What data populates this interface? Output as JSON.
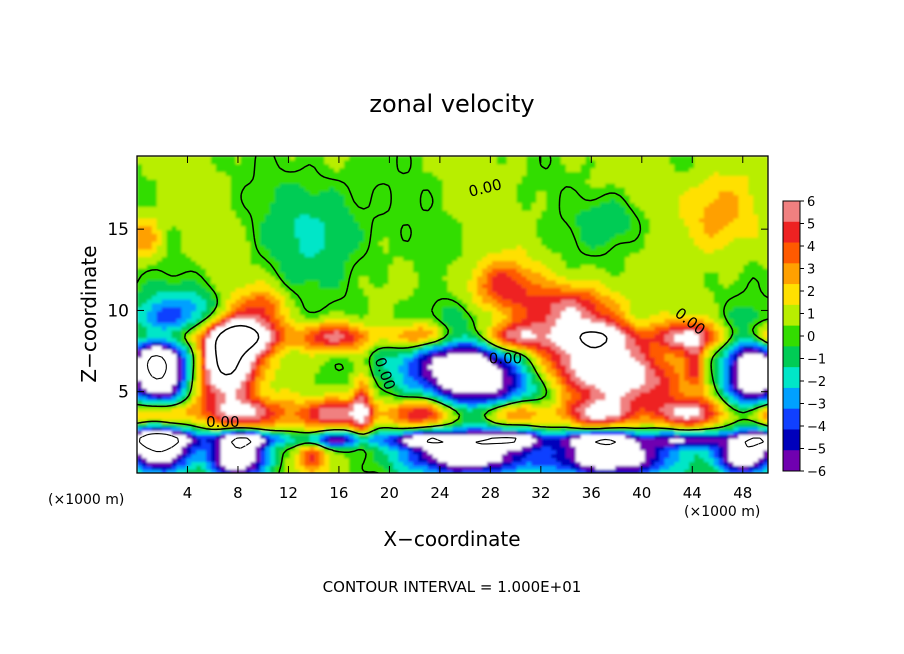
{
  "chart_data": {
    "type": "heatmap",
    "title": "zonal velocity",
    "xlabel": "X−coordinate",
    "ylabel": "Z−coordinate",
    "x_unit_left": "(×1000 m)",
    "x_unit_right": "(×1000 m)",
    "footer": "CONTOUR INTERVAL = 1.000E+01",
    "xlim": [
      0,
      50
    ],
    "ylim": [
      0,
      19.5
    ],
    "x_ticks": [
      {
        "v": 4,
        "label": "4"
      },
      {
        "v": 8,
        "label": "8"
      },
      {
        "v": 12,
        "label": "12"
      },
      {
        "v": 16,
        "label": "16"
      },
      {
        "v": 20,
        "label": "20"
      },
      {
        "v": 24,
        "label": "24"
      },
      {
        "v": 28,
        "label": "28"
      },
      {
        "v": 32,
        "label": "32"
      },
      {
        "v": 36,
        "label": "36"
      },
      {
        "v": 40,
        "label": "40"
      },
      {
        "v": 44,
        "label": "44"
      },
      {
        "v": 48,
        "label": "48"
      }
    ],
    "y_ticks": [
      {
        "v": 5,
        "label": "5"
      },
      {
        "v": 10,
        "label": "10"
      },
      {
        "v": 15,
        "label": "15"
      }
    ],
    "colorbar": {
      "range": [
        -6,
        6
      ],
      "tick_labels": [
        "6",
        "5",
        "4",
        "3",
        "2",
        "1",
        "0",
        "−1",
        "−2",
        "−3",
        "−4",
        "−5",
        "−6"
      ],
      "colors": [
        "#f08080",
        "#ee2222",
        "#ff5a00",
        "#ffa000",
        "#ffe000",
        "#b8ee00",
        "#33dd00",
        "#00cc55",
        "#00e6c8",
        "#00a0ff",
        "#1040ff",
        "#0000bb",
        "#7000b0"
      ]
    },
    "contour_labels": [
      {
        "text": "0.00",
        "x": 27.6,
        "y": 17.5,
        "rot": -14
      },
      {
        "text": "0.00",
        "x": 6.8,
        "y": 3.1,
        "rot": 0
      },
      {
        "text": "0.00",
        "x": 29.2,
        "y": 7.0,
        "rot": 0
      },
      {
        "text": "0.00",
        "x": 43.8,
        "y": 9.3,
        "rot": 38
      },
      {
        "text": "0.00",
        "x": 19.6,
        "y": 6.1,
        "rot": 70
      }
    ],
    "features": [
      {
        "kind": "pos",
        "x": 7.2,
        "y": 7.0,
        "rx": 2.2,
        "ry": 2.8,
        "amp": 11,
        "rot": -25
      },
      {
        "kind": "pos",
        "x": 34.5,
        "y": 10.0,
        "rx": 3.6,
        "ry": 1.6,
        "amp": 5.5,
        "rot": 0
      },
      {
        "kind": "pos",
        "x": 29.0,
        "y": 11.5,
        "rx": 2.6,
        "ry": 1.6,
        "amp": 4.2,
        "rot": 0
      },
      {
        "kind": "pos",
        "x": 37.5,
        "y": 6.3,
        "rx": 5.0,
        "ry": 1.9,
        "amp": 9.0,
        "rot": -8
      },
      {
        "kind": "pos",
        "x": 46.0,
        "y": 16.0,
        "rx": 2.8,
        "ry": 2.5,
        "amp": 2.8,
        "rot": 0
      },
      {
        "kind": "pos",
        "x": 0.6,
        "y": 14.5,
        "rx": 1.3,
        "ry": 1.4,
        "amp": 3.0,
        "rot": 0
      },
      {
        "kind": "pos",
        "x": 10.2,
        "y": 10.2,
        "rx": 1.6,
        "ry": 1.3,
        "amp": 3.0,
        "rot": 0
      },
      {
        "kind": "pos",
        "x": 17.8,
        "y": 4.2,
        "rx": 0.8,
        "ry": 2.0,
        "amp": 4.8,
        "rot": 0
      },
      {
        "kind": "pos",
        "x": 13.9,
        "y": 1.0,
        "rx": 1.0,
        "ry": 1.0,
        "amp": 4.0,
        "rot": 0
      },
      {
        "kind": "pos",
        "x": 44.2,
        "y": 6.7,
        "rx": 0.7,
        "ry": 1.3,
        "amp": 3.5,
        "rot": 0
      },
      {
        "kind": "neg",
        "x": 1.6,
        "y": 6.7,
        "rx": 2.4,
        "ry": 3.0,
        "amp": 12,
        "rot": 0
      },
      {
        "kind": "neg",
        "x": 26.0,
        "y": 6.2,
        "rx": 5.2,
        "ry": 2.4,
        "amp": 10,
        "rot": -10
      },
      {
        "kind": "neg",
        "x": 48.8,
        "y": 6.2,
        "rx": 2.4,
        "ry": 2.6,
        "amp": 10,
        "rot": 0
      },
      {
        "kind": "neg",
        "x": 1.8,
        "y": 1.4,
        "rx": 2.6,
        "ry": 1.4,
        "amp": 10,
        "rot": 0
      },
      {
        "kind": "neg",
        "x": 8.0,
        "y": 1.0,
        "rx": 2.2,
        "ry": 1.3,
        "amp": 10,
        "rot": 0
      },
      {
        "kind": "neg",
        "x": 26.0,
        "y": 1.2,
        "rx": 4.6,
        "ry": 1.4,
        "amp": 10,
        "rot": 0
      },
      {
        "kind": "neg",
        "x": 37.5,
        "y": 1.0,
        "rx": 4.6,
        "ry": 1.3,
        "amp": 10,
        "rot": 0
      },
      {
        "kind": "neg",
        "x": 48.2,
        "y": 1.2,
        "rx": 2.4,
        "ry": 1.3,
        "amp": 10,
        "rot": 0
      },
      {
        "kind": "neg",
        "x": 14.5,
        "y": 15.0,
        "rx": 4.5,
        "ry": 3.5,
        "amp": 2.2,
        "rot": 0
      },
      {
        "kind": "neg",
        "x": 37.5,
        "y": 15.5,
        "rx": 2.6,
        "ry": 1.6,
        "amp": 2.0,
        "rot": 0
      },
      {
        "kind": "neg",
        "x": 5.0,
        "y": 10.0,
        "rx": 2.5,
        "ry": 1.5,
        "amp": 3.0,
        "rot": 0
      }
    ],
    "band_rows": [
      {
        "y": 8.4,
        "w": 0.9,
        "amp": 6.0
      },
      {
        "y": 3.7,
        "w": 0.9,
        "amp": 6.0
      },
      {
        "y": 2.1,
        "w": 0.5,
        "amp": -6.5
      }
    ]
  }
}
